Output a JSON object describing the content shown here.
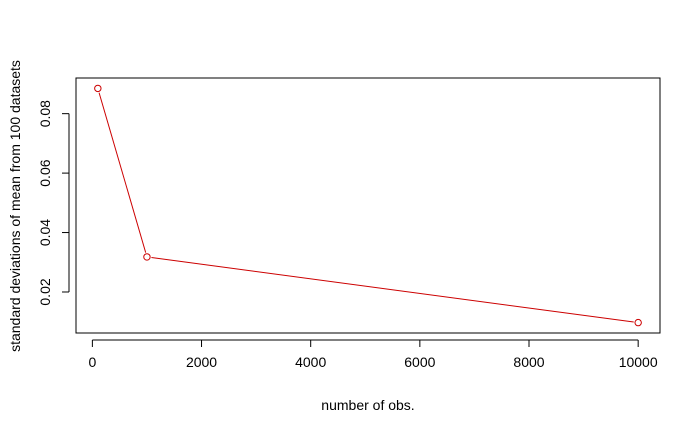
{
  "chart_data": {
    "type": "line",
    "title": "",
    "xlabel": "number of obs.",
    "ylabel": "standard deviations of mean from 100 datasets",
    "x": [
      100,
      1000,
      10000
    ],
    "series": [
      {
        "values": [
          0.0885,
          0.0318,
          0.0097
        ],
        "color": "#cc0000"
      }
    ],
    "xlim": [
      -300,
      10400
    ],
    "ylim": [
      0.0062,
      0.092
    ],
    "xticks": [
      0,
      2000,
      4000,
      6000,
      8000,
      10000
    ],
    "xtick_labels": [
      "0",
      "2000",
      "4000",
      "6000",
      "8000",
      "10000"
    ],
    "yticks": [
      0.02,
      0.04,
      0.06,
      0.08
    ],
    "ytick_labels": [
      "0.02",
      "0.04",
      "0.06",
      "0.08"
    ],
    "markers": "open-circle",
    "grid": false,
    "legend": "none"
  }
}
